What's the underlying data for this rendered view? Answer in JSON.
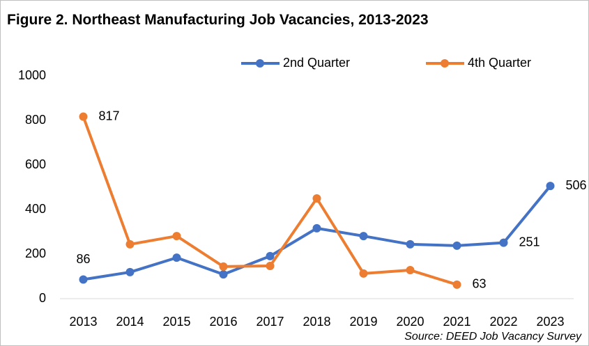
{
  "chart_data": {
    "type": "line",
    "title": "Figure 2. Northeast Manufacturing Job Vacancies, 2013-2023",
    "source": "Source: DEED Job Vacancy Survey",
    "categories": [
      "2013",
      "2014",
      "2015",
      "2016",
      "2017",
      "2018",
      "2019",
      "2020",
      "2021",
      "2022",
      "2023"
    ],
    "series": [
      {
        "name": "2nd Quarter",
        "color": "#4472c4",
        "values": [
          86,
          119,
          184,
          109,
          191,
          316,
          281,
          244,
          238,
          251,
          506
        ],
        "labeled": [
          0,
          9,
          10
        ]
      },
      {
        "name": "4th Quarter",
        "color": "#ed7d31",
        "values": [
          817,
          244,
          281,
          144,
          147,
          450,
          113,
          128,
          63,
          null,
          null
        ],
        "labeled": [
          0,
          8
        ]
      }
    ],
    "ylim": [
      0,
      1000
    ],
    "yticks": [
      0,
      200,
      400,
      600,
      800,
      1000
    ],
    "grid": false,
    "legend": "top"
  }
}
